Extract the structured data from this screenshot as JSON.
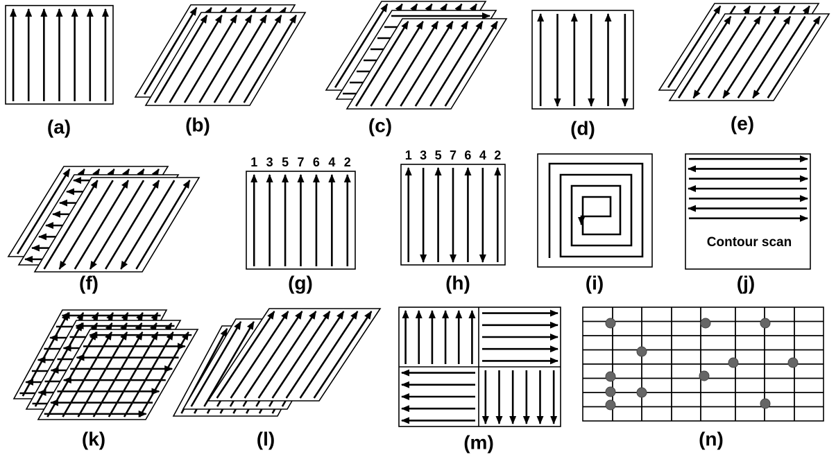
{
  "labels": [
    "(a)",
    "(b)",
    "(c)",
    "(d)",
    "(e)",
    "(f)",
    "(g)",
    "(h)",
    "(i)",
    "(j)",
    "(k)",
    "(l)",
    "(m)",
    "(n)"
  ],
  "scan_order_g": [
    1,
    3,
    5,
    7,
    6,
    4,
    2
  ],
  "scan_order_h": [
    1,
    3,
    5,
    7,
    6,
    4,
    2
  ],
  "contour_text": "Contour scan"
}
